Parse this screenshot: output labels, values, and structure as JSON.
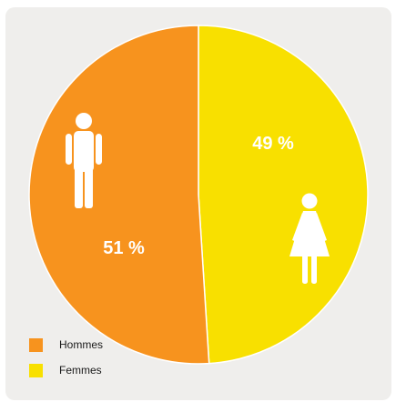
{
  "chart_data": {
    "type": "pie",
    "slices": [
      {
        "label": "Hommes",
        "value": 51,
        "display": "51 %",
        "color": "#f7931e",
        "icon": "man-icon"
      },
      {
        "label": "Femmes",
        "value": 49,
        "display": "49 %",
        "color": "#f8e000",
        "icon": "woman-icon"
      }
    ],
    "legend_position": "bottom-left"
  },
  "colors": {
    "card_background": "#efeeec",
    "label_text": "#ffffff"
  }
}
